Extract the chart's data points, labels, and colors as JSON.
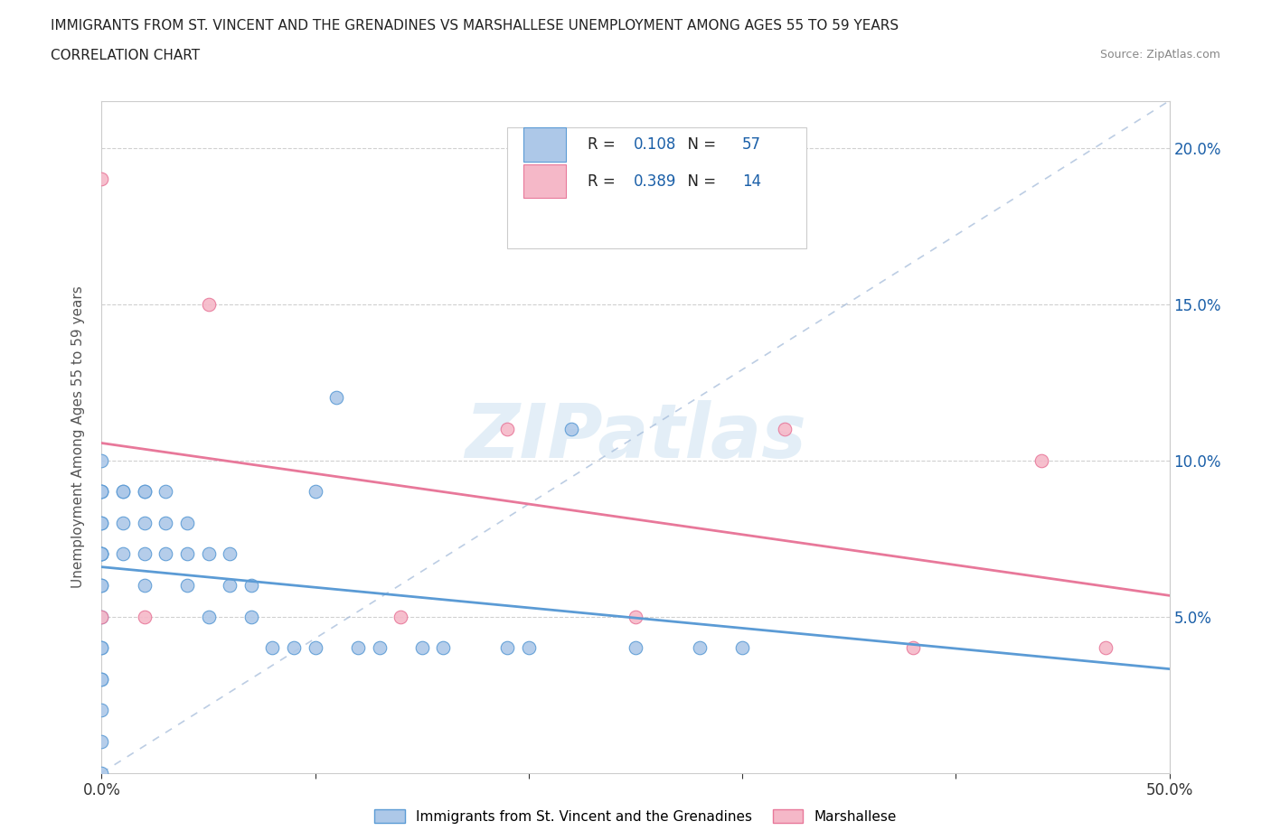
{
  "title_line1": "IMMIGRANTS FROM ST. VINCENT AND THE GRENADINES VS MARSHALLESE UNEMPLOYMENT AMONG AGES 55 TO 59 YEARS",
  "title_line2": "CORRELATION CHART",
  "source_text": "Source: ZipAtlas.com",
  "ylabel": "Unemployment Among Ages 55 to 59 years",
  "xlim": [
    0.0,
    0.5
  ],
  "ylim": [
    0.0,
    0.215
  ],
  "xticks": [
    0.0,
    0.1,
    0.2,
    0.3,
    0.4,
    0.5
  ],
  "xtick_labels": [
    "0.0%",
    "",
    "",
    "",
    "",
    "50.0%"
  ],
  "yticks": [
    0.0,
    0.05,
    0.1,
    0.15,
    0.2
  ],
  "ytick_labels_right": [
    "",
    "5.0%",
    "10.0%",
    "15.0%",
    "20.0%"
  ],
  "blue_fill": "#adc8e8",
  "pink_fill": "#f5b8c8",
  "blue_edge": "#5b9bd5",
  "pink_edge": "#e8789a",
  "blue_line": "#5b9bd5",
  "pink_line": "#e8789a",
  "diag_color": "#a0b8d8",
  "R_blue": 0.108,
  "N_blue": 57,
  "R_pink": 0.389,
  "N_pink": 14,
  "legend_N_color": "#1a5fa8",
  "watermark": "ZIPatlas",
  "blue_scatter_x": [
    0.0,
    0.0,
    0.0,
    0.0,
    0.0,
    0.0,
    0.0,
    0.0,
    0.0,
    0.0,
    0.0,
    0.0,
    0.0,
    0.0,
    0.0,
    0.0,
    0.0,
    0.0,
    0.0,
    0.0,
    0.01,
    0.01,
    0.01,
    0.01,
    0.02,
    0.02,
    0.02,
    0.02,
    0.02,
    0.03,
    0.03,
    0.03,
    0.04,
    0.04,
    0.04,
    0.05,
    0.05,
    0.06,
    0.06,
    0.07,
    0.07,
    0.08,
    0.09,
    0.1,
    0.1,
    0.11,
    0.12,
    0.13,
    0.15,
    0.16,
    0.19,
    0.2,
    0.22,
    0.25,
    0.28,
    0.3
  ],
  "blue_scatter_y": [
    0.0,
    0.01,
    0.02,
    0.03,
    0.04,
    0.06,
    0.07,
    0.07,
    0.07,
    0.07,
    0.08,
    0.08,
    0.09,
    0.09,
    0.09,
    0.1,
    0.06,
    0.05,
    0.04,
    0.03,
    0.07,
    0.08,
    0.09,
    0.09,
    0.06,
    0.07,
    0.08,
    0.09,
    0.09,
    0.07,
    0.08,
    0.09,
    0.06,
    0.07,
    0.08,
    0.05,
    0.07,
    0.06,
    0.07,
    0.05,
    0.06,
    0.04,
    0.04,
    0.04,
    0.09,
    0.12,
    0.04,
    0.04,
    0.04,
    0.04,
    0.04,
    0.04,
    0.11,
    0.04,
    0.04,
    0.04
  ],
  "pink_scatter_x": [
    0.0,
    0.0,
    0.02,
    0.05,
    0.14,
    0.19,
    0.25,
    0.32,
    0.38,
    0.44,
    0.47
  ],
  "pink_scatter_y": [
    0.05,
    0.19,
    0.05,
    0.15,
    0.05,
    0.11,
    0.05,
    0.11,
    0.04,
    0.1,
    0.04
  ],
  "legend_label_blue": "Immigrants from St. Vincent and the Grenadines",
  "legend_label_pink": "Marshallese"
}
